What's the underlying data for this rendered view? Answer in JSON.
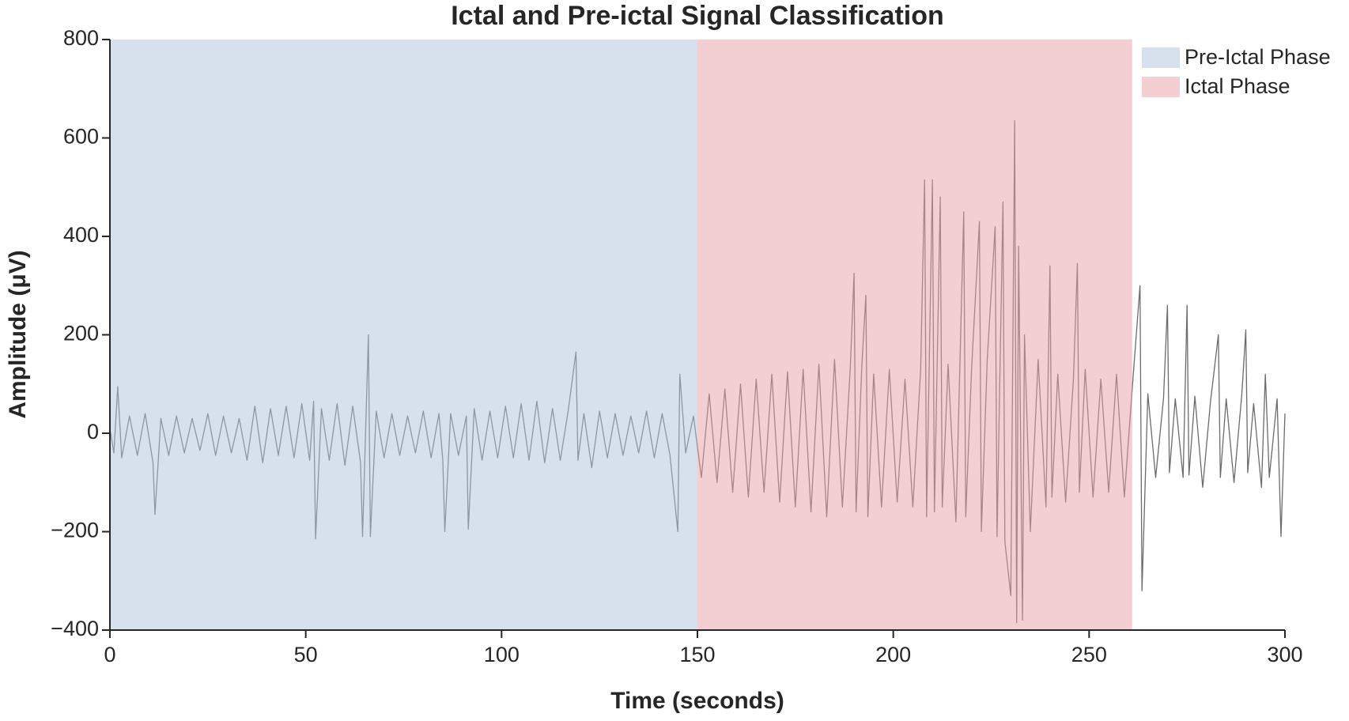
{
  "chart_data": {
    "type": "line",
    "title": "Ictal and Pre-ictal Signal Classification",
    "x_label": "Time (seconds)",
    "y_label": "Amplitude (μV)",
    "xlim": [
      0,
      300
    ],
    "xticks": [
      0,
      50,
      100,
      150,
      200,
      250,
      300
    ],
    "ylim": [
      -400,
      800
    ],
    "yticks": [
      {
        "value": -400,
        "label": "−400"
      },
      {
        "value": -200,
        "label": "−200"
      },
      0,
      200,
      400,
      600,
      800
    ],
    "legend": "upper right",
    "regions": [
      {
        "name": "Pre-Ictal Phase",
        "color": "#aec3dc",
        "alpha": 0.5,
        "start": 0,
        "end": 150
      },
      {
        "name": "Ictal Phase",
        "color": "#e8a0a8",
        "alpha": 0.5,
        "start": 150,
        "end": 261
      }
    ],
    "series": [
      {
        "color": "#6b6b6b",
        "x": [
          0,
          1,
          2,
          3,
          5,
          7,
          9,
          11,
          11.5,
          13,
          15,
          17,
          19,
          21,
          23,
          25,
          27,
          29,
          31,
          33,
          35,
          37,
          39,
          41,
          43,
          45,
          47,
          49,
          51,
          52,
          52.5,
          54,
          56,
          58,
          60,
          62,
          64,
          64.5,
          66,
          66.5,
          68,
          70,
          72,
          74,
          76,
          78,
          80,
          82,
          84,
          85,
          85.5,
          87,
          89,
          91,
          91.5,
          93,
          95,
          97,
          99,
          101,
          103,
          105,
          107,
          109,
          111,
          113,
          115,
          117,
          119,
          119.5,
          121,
          123,
          125,
          127,
          129,
          131,
          133,
          135,
          137,
          139,
          141,
          143,
          145,
          145.5,
          147,
          149,
          151,
          153,
          155,
          157,
          159,
          161,
          163,
          165,
          167,
          169,
          171,
          173,
          175,
          177,
          179,
          181,
          183,
          185,
          187,
          189,
          190,
          190.5,
          192,
          193,
          193.5,
          195,
          197,
          199,
          201,
          203,
          205,
          207,
          208,
          208.5,
          210,
          210.5,
          212,
          212.5,
          214,
          216,
          218,
          218.5,
          220,
          222,
          222.5,
          224,
          226,
          226.5,
          228,
          228.5,
          230,
          231,
          231.5,
          232,
          233,
          233.5,
          235,
          237,
          239,
          240,
          240.5,
          242,
          244,
          246,
          247,
          247.5,
          249,
          251,
          253,
          255,
          257,
          259,
          261,
          263,
          263.5,
          265,
          267,
          269,
          270,
          270.5,
          272,
          274,
          275,
          275.5,
          277,
          279,
          281,
          283,
          283.5,
          285,
          287,
          289,
          290,
          290.5,
          292,
          294,
          295,
          296,
          298,
          299,
          300
        ],
        "values": [
          10,
          -40,
          95,
          -50,
          35,
          -45,
          40,
          -60,
          -165,
          30,
          -45,
          35,
          -40,
          30,
          -35,
          40,
          -45,
          35,
          -40,
          30,
          -55,
          55,
          -60,
          50,
          -45,
          55,
          -50,
          60,
          -55,
          65,
          -215,
          50,
          -55,
          60,
          -65,
          55,
          -60,
          -210,
          200,
          -210,
          45,
          -50,
          40,
          -45,
          35,
          -40,
          45,
          -50,
          40,
          -55,
          -200,
          40,
          -45,
          35,
          -195,
          50,
          -55,
          45,
          -50,
          55,
          -50,
          60,
          -55,
          65,
          -60,
          50,
          -55,
          45,
          165,
          -55,
          40,
          -70,
          45,
          -50,
          40,
          -45,
          35,
          -40,
          45,
          -50,
          40,
          -45,
          -200,
          120,
          -40,
          35,
          -90,
          80,
          -100,
          90,
          -120,
          100,
          -130,
          110,
          -120,
          120,
          -140,
          125,
          -150,
          130,
          -160,
          140,
          -170,
          150,
          -150,
          130,
          325,
          -160,
          140,
          280,
          -170,
          120,
          -150,
          130,
          -140,
          110,
          -150,
          130,
          515,
          -170,
          515,
          -160,
          480,
          -150,
          140,
          -180,
          450,
          -170,
          130,
          430,
          -200,
          150,
          420,
          -210,
          470,
          -220,
          -330,
          635,
          -385,
          380,
          -380,
          200,
          -200,
          150,
          -150,
          340,
          -130,
          120,
          -140,
          110,
          345,
          -120,
          130,
          -130,
          110,
          -120,
          120,
          -130,
          90,
          300,
          -320,
          80,
          -90,
          70,
          260,
          -80,
          70,
          -90,
          260,
          -85,
          75,
          -110,
          65,
          200,
          -90,
          70,
          -100,
          80,
          210,
          -80,
          60,
          -110,
          120,
          -90,
          70,
          -210,
          40
        ]
      }
    ]
  }
}
